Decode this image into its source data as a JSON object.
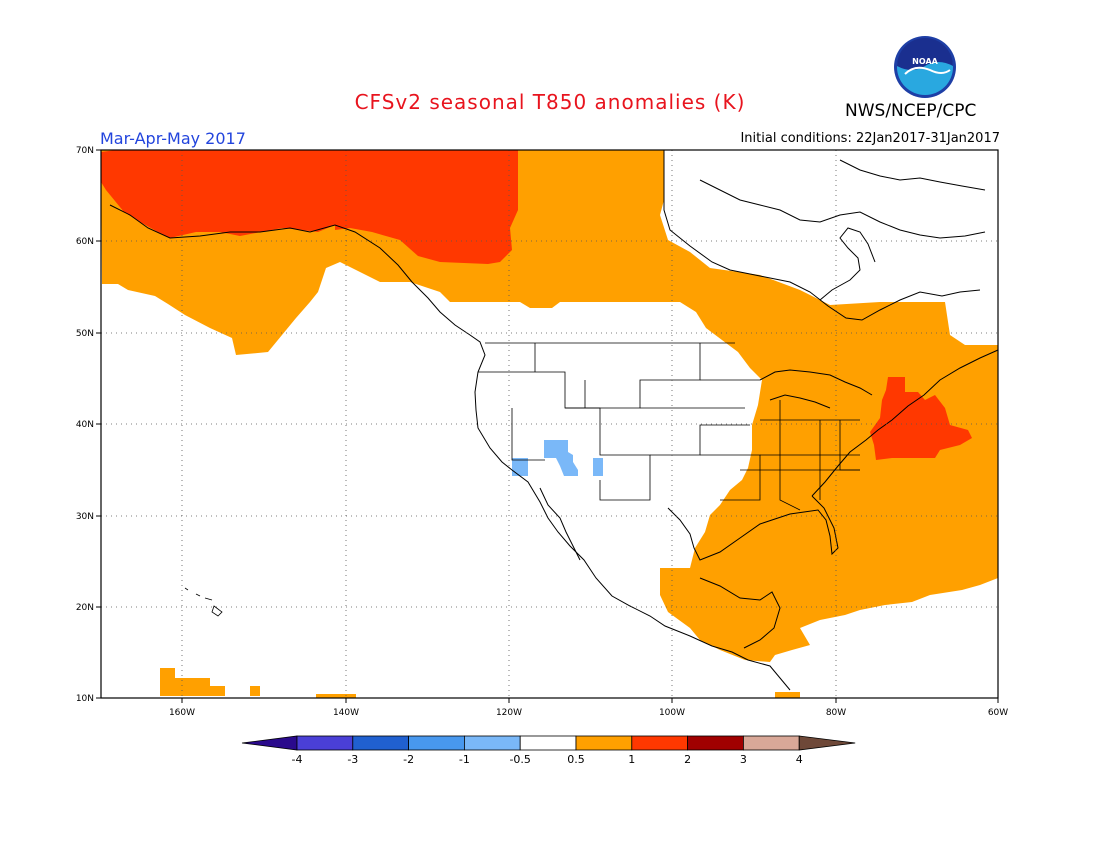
{
  "title": "CFSv2 seasonal T850 anomalies (K)",
  "agency": "NWS/NCEP/CPC",
  "logo_text": "NOAA",
  "season": "Mar-Apr-May 2017",
  "initial_conditions": "Initial conditions: 22Jan2017-31Jan2017",
  "lat_labels": [
    "70N",
    "60N",
    "50N",
    "40N",
    "30N",
    "20N",
    "10N"
  ],
  "lon_labels": [
    "160W",
    "140W",
    "120W",
    "100W",
    "80W",
    "60W"
  ],
  "colorbar": {
    "colors": [
      "#2a0a8c",
      "#4a3fd6",
      "#2060d0",
      "#4898ee",
      "#7ab8f8",
      "#ffffff",
      "#ffa000",
      "#ff3800",
      "#a00000",
      "#d9a898",
      "#6e4838"
    ],
    "labels": [
      "-4",
      "-3",
      "-2",
      "-1",
      "-0.5",
      "0.5",
      "1",
      "2",
      "3",
      "4"
    ]
  },
  "anomaly_regions": {
    "category_colors": {
      "+0.5..1": "#ffa000",
      "+1..2": "#ff3800",
      "-1..-0.5": "#7ab8f8"
    }
  }
}
